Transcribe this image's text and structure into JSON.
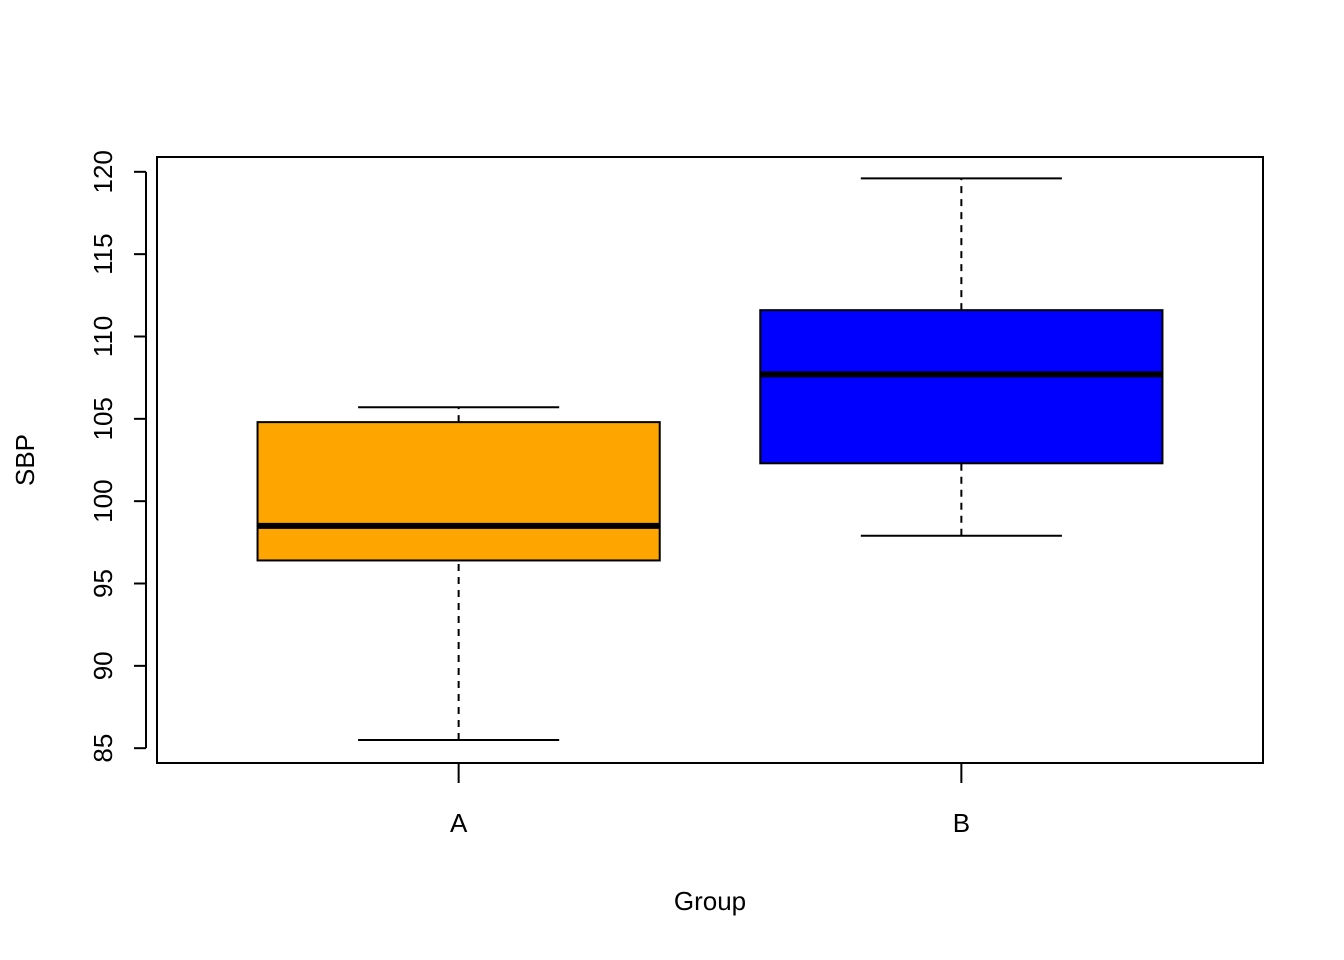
{
  "chart_data": {
    "type": "boxplot",
    "title": "",
    "xlabel": "Group",
    "ylabel": "SBP",
    "ylim": [
      84.1,
      120.9
    ],
    "y_ticks": [
      85,
      90,
      95,
      100,
      105,
      110,
      115,
      120
    ],
    "y_tick_labels": [
      "85",
      "90",
      "95",
      "100",
      "105",
      "110",
      "115",
      "120"
    ],
    "grid": false,
    "legend": "none",
    "categories": [
      "A",
      "B"
    ],
    "boxes": [
      {
        "category": "A",
        "color": "#FFA500",
        "whisker_low": 85.5,
        "q1": 96.4,
        "median": 98.5,
        "q3": 104.8,
        "whisker_high": 105.7
      },
      {
        "category": "B",
        "color": "#0000FF",
        "whisker_low": 97.9,
        "q1": 102.3,
        "median": 107.7,
        "q3": 111.6,
        "whisker_high": 119.6
      }
    ]
  }
}
